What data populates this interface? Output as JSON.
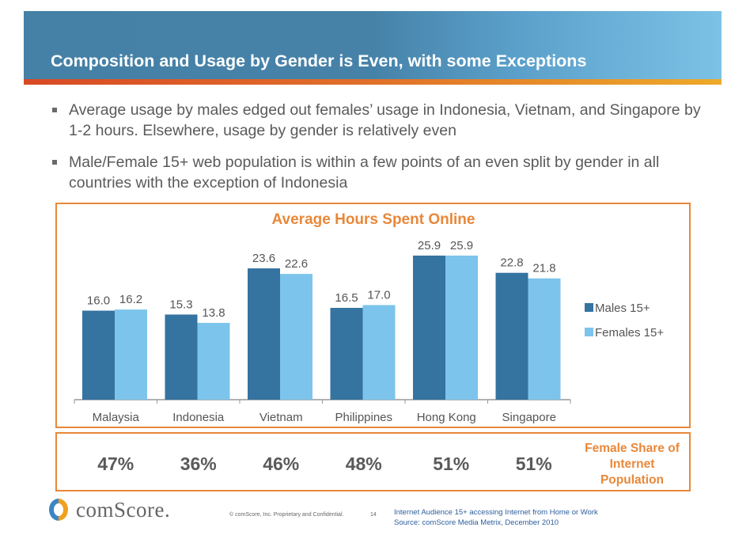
{
  "header": {
    "title": "Composition and Usage by Gender is Even, with some Exceptions"
  },
  "bullets": [
    "Average usage by males edged out females’ usage in Indonesia, Vietnam, and Singapore by 1-2 hours. Elsewhere, usage by gender is relatively even",
    "Male/Female 15+ web population is within a few points of an even split by gender in all countries with the exception of Indonesia"
  ],
  "chart_data": {
    "type": "bar",
    "title": "Average Hours Spent Online",
    "categories": [
      "Malaysia",
      "Indonesia",
      "Vietnam",
      "Philippines",
      "Hong Kong",
      "Singapore"
    ],
    "series": [
      {
        "name": "Males 15+",
        "values": [
          16.0,
          15.3,
          23.6,
          16.5,
          25.9,
          22.8
        ],
        "color": "#3573a0"
      },
      {
        "name": "Females 15+",
        "values": [
          16.2,
          13.8,
          22.6,
          17.0,
          25.9,
          21.8
        ],
        "color": "#7cc4eb"
      }
    ],
    "ylim": [
      0,
      26
    ],
    "grid": false,
    "legend": "right"
  },
  "female_share": {
    "label": "Female Share of Internet Population",
    "values": [
      "47%",
      "36%",
      "46%",
      "48%",
      "51%",
      "51%"
    ]
  },
  "footer": {
    "logo": "comScore.",
    "copyright": "© comScore, Inc.  Proprietary and Confidential.",
    "page_number": "14",
    "note": "Internet Audience 15+ accessing Internet from Home or Work",
    "source": "Source:  comScore Media Metrix, December 2010"
  },
  "colors": {
    "accent": "#e8883a",
    "header": "#4682a8",
    "male": "#3573a0",
    "female": "#7cc4eb"
  }
}
